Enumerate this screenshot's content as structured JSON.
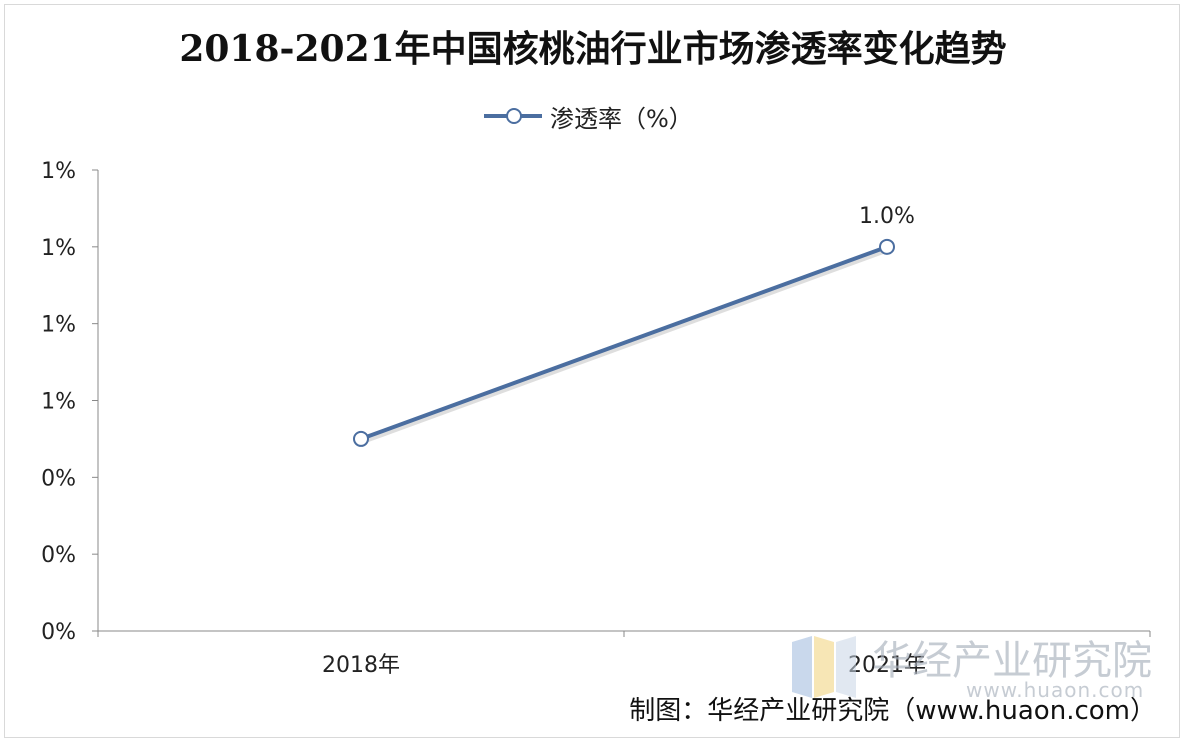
{
  "watermark": {
    "name": "华经产业研究院",
    "url": "www.huaon.com"
  },
  "source": "制图：华经产业研究院（www.huaon.com）",
  "colors": {
    "series": "#4b6ea0",
    "axis": "#888888"
  },
  "chart_data": {
    "type": "line",
    "title": "2018-2021年中国核桃油行业市场渗透率变化趋势",
    "xlabel": "",
    "ylabel": "",
    "categories": [
      "2018年",
      "2021年"
    ],
    "y_tick_labels": [
      "0%",
      "0%",
      "0%",
      "1%",
      "1%",
      "1%",
      "1%"
    ],
    "ylim": [
      0,
      1.2
    ],
    "grid": false,
    "legend": "top-center",
    "series": [
      {
        "name": "渗透率（%）",
        "values": [
          0.5,
          1.0
        ],
        "data_labels": [
          "",
          "1.0%"
        ]
      }
    ]
  }
}
